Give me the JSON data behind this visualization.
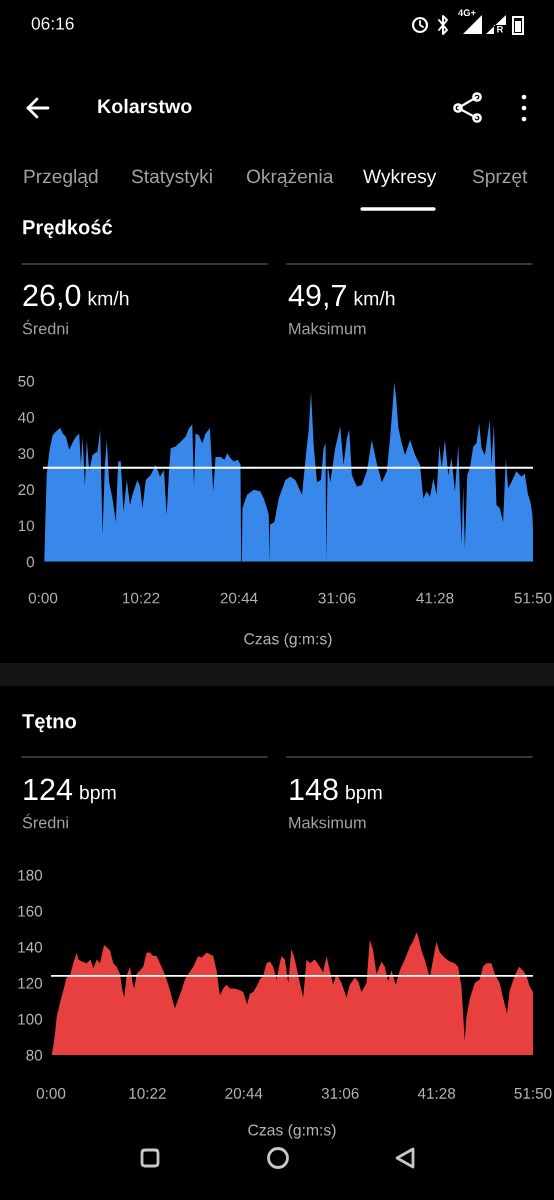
{
  "chart_data": [
    {
      "type": "area",
      "title": "Prędkość",
      "xlabel": "Czas (g:m:s)",
      "annotations": [
        "06:16",
        "4G+",
        "R",
        "Kolarstwo",
        "Przegląd",
        "Statystyki",
        "Okrążenia",
        "Wykresy",
        "Sprzęt",
        "26,0",
        "km/h",
        "Średni",
        "49,7",
        "km/h",
        "Maksimum"
      ],
      "x": [
        0.14,
        0.21,
        0.39,
        0.67,
        1.02,
        1.37,
        1.83,
        2.08,
        2.43,
        2.78,
        3.13,
        3.48,
        3.83,
        4.01,
        4.19,
        4.43,
        4.64,
        4.89,
        5.24,
        5.77,
        6.05,
        6.3,
        6.54,
        6.75,
        7.0,
        7.35,
        7.7,
        7.95,
        8.23,
        8.51,
        8.86,
        9.21,
        9.46,
        9.99,
        10.27,
        10.52,
        10.87,
        11.4,
        11.92,
        12.38,
        12.8,
        13.08,
        13.33,
        13.51,
        14.03,
        14.56,
        15.09,
        15.44,
        15.79,
        15.97,
        16.14,
        16.49,
        16.85,
        17.2,
        17.66,
        18.01,
        18.25,
        18.78,
        19.2,
        19.48,
        19.84,
        20.19,
        20.61,
        20.82,
        20.89,
        20.96,
        21.03,
        21.1,
        21.59,
        22.3,
        23.0,
        23.35,
        23.7,
        23.88,
        23.95,
        24.02,
        24.48,
        24.94,
        25.64,
        26.17,
        26.69,
        27.4,
        27.85,
        28.1,
        28.35,
        28.63,
        28.98,
        29.4,
        29.68,
        29.89,
        29.96,
        30.11,
        30.39,
        30.91,
        31.44,
        31.79,
        32.15,
        32.39,
        32.67,
        33.2,
        33.73,
        34.26,
        34.78,
        35.31,
        35.84,
        36.37,
        36.72,
        37.01,
        37.15,
        37.36,
        37.6,
        37.95,
        38.3,
        38.83,
        39.36,
        39.88,
        40.23,
        40.59,
        40.94,
        41.29,
        41.64,
        41.92,
        42.17,
        42.52,
        42.87,
        43.22,
        43.57,
        43.93,
        44.28,
        44.45,
        44.63,
        44.88,
        45.16,
        45.51,
        45.86,
        46.14,
        46.39,
        46.74,
        47.09,
        47.27,
        47.44,
        47.69,
        47.97,
        48.32,
        48.67,
        48.96,
        49.2,
        49.55,
        50.08,
        50.61,
        50.96,
        51.31,
        51.56,
        51.77,
        51.83
      ],
      "series": [
        {
          "color": "#3888ec",
          "values": [
            0,
            7.4,
            24,
            30.5,
            35,
            36,
            37,
            35.5,
            34.6,
            31,
            33,
            34.6,
            35.5,
            26.8,
            34.6,
            21,
            33.7,
            25,
            29.5,
            30.5,
            36.5,
            7.4,
            26.8,
            33.7,
            22,
            17.5,
            11,
            27.7,
            27.7,
            13.9,
            22.6,
            15.7,
            18.5,
            22.6,
            20.8,
            14.8,
            22.6,
            24,
            26.8,
            23.5,
            25.4,
            12.9,
            25,
            31.4,
            31.9,
            33.2,
            34.6,
            36.9,
            38,
            21,
            35.5,
            35,
            32.8,
            35.5,
            36.9,
            19.4,
            29,
            29,
            28.2,
            30,
            28.6,
            27.7,
            28.2,
            27.2,
            27,
            0,
            0,
            14.8,
            18.5,
            19.9,
            19.4,
            17.5,
            14.8,
            13,
            0,
            10.2,
            11,
            17.5,
            22.6,
            23.5,
            22.6,
            18.5,
            30.5,
            36,
            47,
            32.3,
            22,
            22.6,
            31.4,
            32.8,
            0,
            26.8,
            22,
            31.4,
            37.4,
            26.8,
            34.2,
            36.5,
            24,
            20.8,
            21.2,
            25,
            33.7,
            27.2,
            22,
            25,
            34.2,
            43.9,
            49.7,
            45.2,
            36.9,
            32.8,
            29.5,
            33.7,
            29.5,
            26.8,
            17.5,
            19.4,
            18,
            23,
            18.5,
            32.3,
            25.9,
            33.7,
            24,
            28.6,
            19.4,
            32.3,
            4.6,
            21,
            3.7,
            24,
            25.9,
            31.9,
            32.8,
            38.3,
            31.4,
            29.5,
            36,
            39.2,
            26.8,
            37.9,
            15.7,
            14.8,
            11,
            28.6,
            20.3,
            22,
            25,
            23.5,
            24.4,
            18.5,
            16.6,
            13,
            9.2
          ]
        }
      ],
      "xlim": [
        0,
        51.833
      ],
      "xticks": [
        {
          "value": 0,
          "label": "0:00"
        },
        {
          "value": 10.367,
          "label": "10:22"
        },
        {
          "value": 20.733,
          "label": "20:44"
        },
        {
          "value": 31.1,
          "label": "31:06"
        },
        {
          "value": 41.467,
          "label": "41:28"
        },
        {
          "value": 51.833,
          "label": "51:50"
        }
      ],
      "ylim": [
        0,
        50
      ],
      "yticks": [
        0,
        10,
        20,
        30,
        40,
        50
      ],
      "ref_lines": [
        {
          "axis": "y",
          "value": 26.0,
          "color": "#ffffff"
        }
      ]
    },
    {
      "type": "area",
      "title": "Tętno",
      "xlabel": "Czas (g:m:s)",
      "annotations": [
        "124",
        "bpm",
        "Średni",
        "148",
        "bpm",
        "Maksimum"
      ],
      "x": [
        0.07,
        0.25,
        0.43,
        0.61,
        0.97,
        1.33,
        1.68,
        2.04,
        2.4,
        2.76,
        2.94,
        3.3,
        3.83,
        4.26,
        4.55,
        4.91,
        5.27,
        5.7,
        5.98,
        6.34,
        6.7,
        7.06,
        7.42,
        7.67,
        7.88,
        8.13,
        8.49,
        8.78,
        8.96,
        9.21,
        9.57,
        9.92,
        10.28,
        10.64,
        11.0,
        11.36,
        11.71,
        12.07,
        12.43,
        12.79,
        13.15,
        13.33,
        13.68,
        14.04,
        14.4,
        14.76,
        15.3,
        15.83,
        16.19,
        16.73,
        17.09,
        17.45,
        17.8,
        18.16,
        18.52,
        18.88,
        19.24,
        19.77,
        20.31,
        20.67,
        21.1,
        21.39,
        21.75,
        22.1,
        22.46,
        22.82,
        23.18,
        23.54,
        23.9,
        24.25,
        24.61,
        24.79,
        25.15,
        25.51,
        25.86,
        26.22,
        26.76,
        27.12,
        27.48,
        27.84,
        28.37,
        28.91,
        29.27,
        29.63,
        29.98,
        30.34,
        30.7,
        31.24,
        31.78,
        32.13,
        32.67,
        33.03,
        33.39,
        33.93,
        34.28,
        34.64,
        35.0,
        35.54,
        35.9,
        36.25,
        36.61,
        37.08,
        37.51,
        38.04,
        38.58,
        39.01,
        39.3,
        39.48,
        39.84,
        40.19,
        40.73,
        41.09,
        41.45,
        41.81,
        42.34,
        42.88,
        43.42,
        43.78,
        44.14,
        44.49,
        44.67,
        45.03,
        45.57,
        46.11,
        46.46,
        46.82,
        47.36,
        47.72,
        48.25,
        48.61,
        49.04,
        49.33,
        49.87,
        50.33,
        50.76,
        51.12,
        51.48,
        51.83
      ],
      "series": [
        {
          "color": "#e8403f",
          "values": [
            80,
            85,
            92,
            101,
            109,
            116,
            123,
            124,
            131,
            137,
            133,
            132,
            131,
            133,
            128,
            133,
            131,
            141,
            140,
            138,
            131,
            129,
            125,
            116,
            112,
            124,
            129,
            120,
            117,
            125,
            127,
            129,
            137,
            137,
            135,
            135,
            131,
            127,
            122,
            116,
            109,
            106,
            111,
            116,
            122,
            125,
            129,
            135,
            134,
            137,
            136,
            135,
            127,
            113,
            117,
            119,
            117,
            117,
            116,
            115,
            108,
            114,
            115,
            118,
            122,
            124,
            131,
            132,
            129,
            122,
            131,
            135,
            133,
            120,
            139,
            133,
            120,
            112,
            133,
            131,
            133,
            129,
            126,
            135,
            127,
            119,
            125,
            120,
            112,
            119,
            123,
            121,
            115,
            120,
            144,
            138,
            125,
            132,
            129,
            121,
            127,
            119,
            127,
            133,
            140,
            144,
            148,
            146,
            138,
            133,
            123,
            133,
            143,
            137,
            134,
            132,
            131,
            129,
            118,
            88,
            101,
            111,
            120,
            122,
            129,
            131,
            131,
            125,
            120,
            112,
            103,
            116,
            124,
            129,
            127,
            124,
            118,
            115
          ]
        }
      ],
      "xlim": [
        0,
        51.833
      ],
      "xticks": [
        {
          "value": 0,
          "label": "0:00"
        },
        {
          "value": 10.367,
          "label": "10:22"
        },
        {
          "value": 20.733,
          "label": "20:44"
        },
        {
          "value": 31.1,
          "label": "31:06"
        },
        {
          "value": 41.467,
          "label": "41:28"
        },
        {
          "value": 51.833,
          "label": "51:50"
        }
      ],
      "ylim": [
        80,
        180
      ],
      "yticks": [
        80,
        100,
        120,
        140,
        160,
        180
      ],
      "ref_lines": [
        {
          "axis": "y",
          "value": 124,
          "color": "#ffffff"
        }
      ]
    }
  ]
}
